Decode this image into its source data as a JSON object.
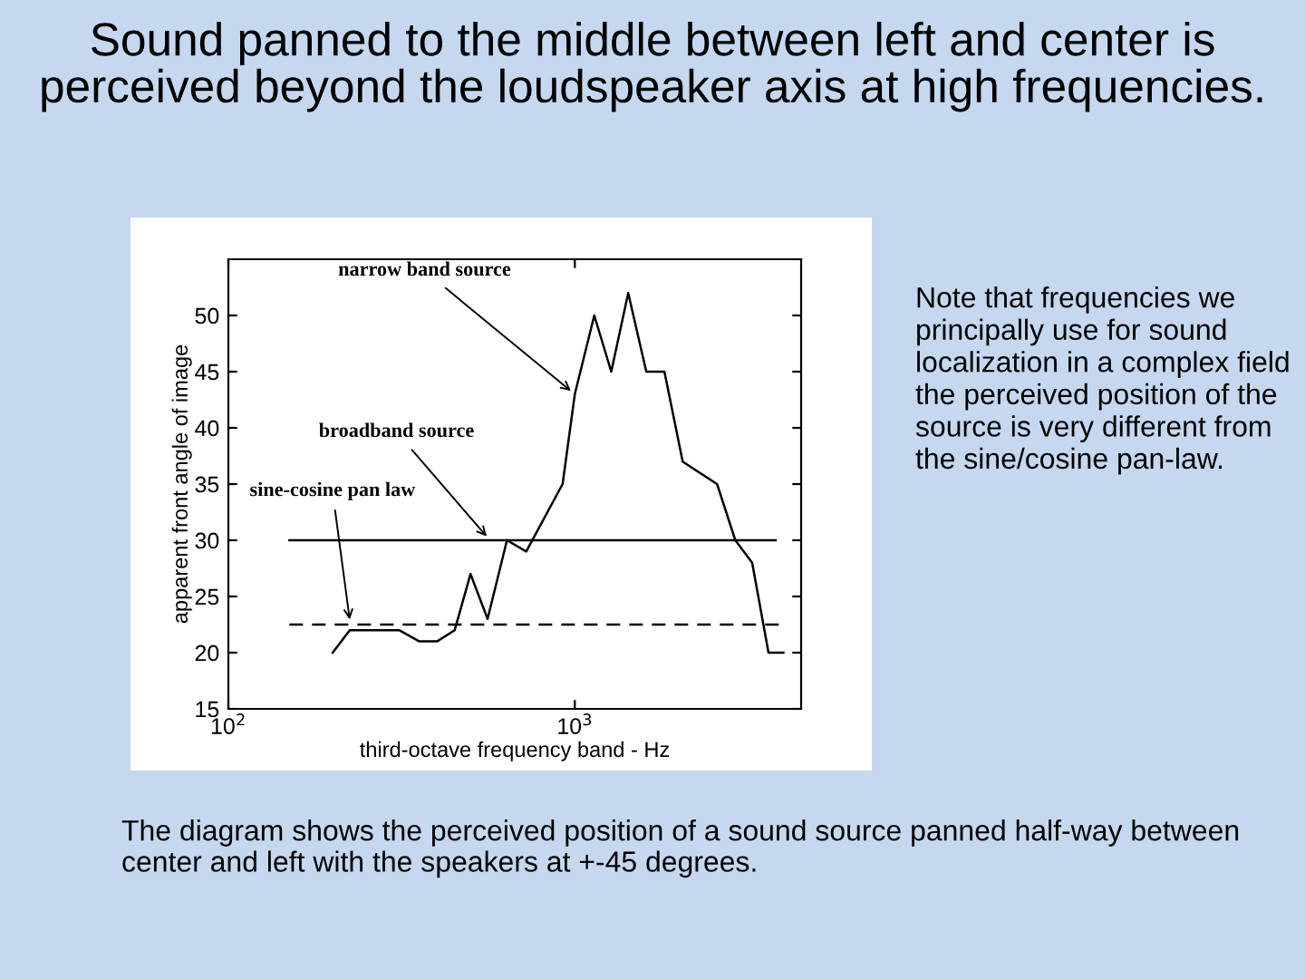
{
  "chart_data": {
    "type": "line",
    "title": "Sound panned to the middle between left and center is perceived beyond the loudspeaker axis at high frequencies.",
    "xlabel": "third-octave frequency band - Hz",
    "ylabel": "apparent front angle of image",
    "log": "x",
    "xlim": [
      100,
      4500
    ],
    "xticks": [
      {
        "value": 100,
        "label": "10$^{2}$"
      },
      {
        "value": 1000,
        "label": "10$^{3}$"
      }
    ],
    "ylim": [
      15,
      55
    ],
    "yticks": [
      15,
      20,
      25,
      30,
      35,
      40,
      45,
      50
    ],
    "grid": false,
    "legend": false,
    "series": [
      {
        "color": "#000000",
        "line_style": "solid",
        "x": [
          200,
          224,
          311,
          356,
          400,
          450,
          500,
          560,
          637,
          724,
          922,
          1000,
          1138,
          1274,
          1426,
          1608,
          1814,
          2048,
          2574,
          2906,
          3250,
          3623,
          4000
        ],
        "values": [
          20,
          22,
          22,
          21,
          21,
          22,
          27,
          23,
          30,
          29,
          35,
          43,
          50,
          45,
          52,
          45,
          45,
          37,
          35,
          30,
          28,
          20,
          20
        ]
      },
      {
        "color": "#000000",
        "line_style": "solid",
        "x": [
          150,
          3800
        ],
        "values": [
          30,
          30
        ]
      },
      {
        "color": "#000000",
        "line_style": "dashed",
        "x": [
          150,
          3900
        ],
        "values": [
          22.5,
          22.5
        ]
      }
    ],
    "annotations": [
      {
        "text": "narrow band source",
        "x": 1000,
        "y": 43
      },
      {
        "text": "broadband source",
        "x": 569,
        "y": 30
      },
      {
        "text": "sine-cosine pan law",
        "x": 225,
        "y": 22.5
      },
      "Note that frequencies we principally use for sound localization in a complex field the perceived position of the source is very different from the sine/cosine pan-law.",
      "The diagram shows the perceived position of a sound source panned half-way between center and left with the speakers at +-45 degrees."
    ]
  }
}
